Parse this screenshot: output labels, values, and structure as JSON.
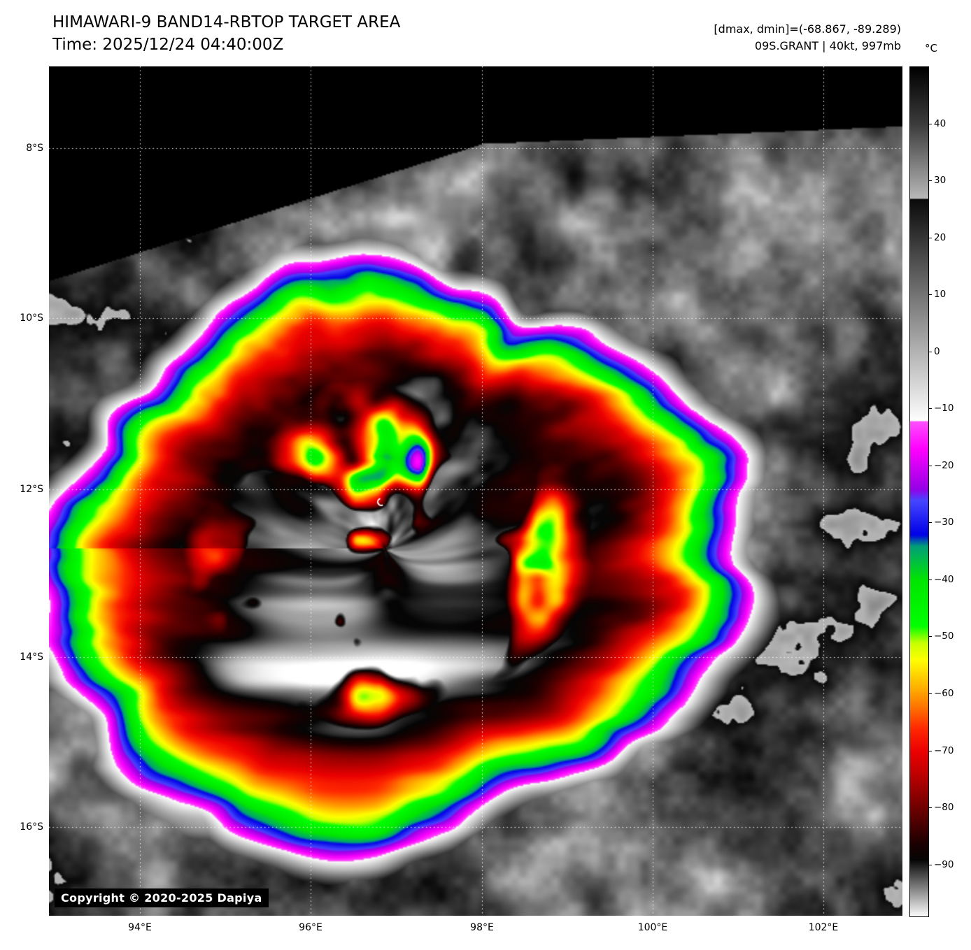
{
  "header": {
    "title": "HIMAWARI-9 BAND14-RBTOP TARGET AREA",
    "time": "Time: 2025/12/24 04:40:00Z"
  },
  "annotations": {
    "dmax_dmin": "[dmax, dmin]=(-68.867, -89.289)",
    "storm_info": "09S.GRANT | 40kt, 997mb"
  },
  "colorbar": {
    "unit": "°C",
    "ticks": [
      {
        "value": 40,
        "label": "40"
      },
      {
        "value": 30,
        "label": "30"
      },
      {
        "value": 20,
        "label": "20"
      },
      {
        "value": 10,
        "label": "10"
      },
      {
        "value": 0,
        "label": "0"
      },
      {
        "value": -10,
        "label": "−10"
      },
      {
        "value": -20,
        "label": "−20"
      },
      {
        "value": -30,
        "label": "−30"
      },
      {
        "value": -40,
        "label": "−40"
      },
      {
        "value": -50,
        "label": "−50"
      },
      {
        "value": -60,
        "label": "−60"
      },
      {
        "value": -70,
        "label": "−70"
      },
      {
        "value": -80,
        "label": "−80"
      },
      {
        "value": -90,
        "label": "−90"
      }
    ]
  },
  "axes": {
    "lat_ticks": [
      "8°S",
      "10°S",
      "12°S",
      "14°S",
      "16°S"
    ],
    "lon_ticks": [
      "94°E",
      "96°E",
      "98°E",
      "100°E",
      "102°E"
    ]
  },
  "copyright": "Copyright © 2020-2025 Dapiya",
  "colors": {
    "background": "#ffffff",
    "nodata": "#000000",
    "grid": "#ffffff",
    "copyright_bg": "#000000",
    "copyright_fg": "#ffffff"
  }
}
